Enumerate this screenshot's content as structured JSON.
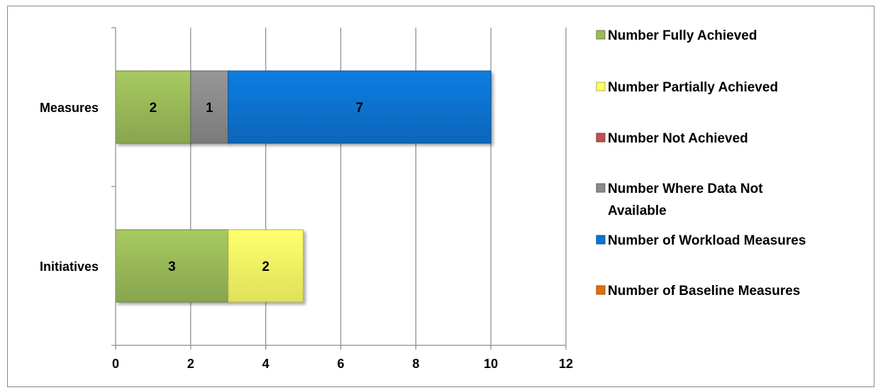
{
  "chart_data": {
    "type": "bar",
    "orientation": "horizontal",
    "stacked": true,
    "categories": [
      "Measures",
      "Initiatives"
    ],
    "series": [
      {
        "name": "Number Fully Achieved",
        "color": "#9BBB59",
        "values": [
          2,
          3
        ]
      },
      {
        "name": "Number Partially Achieved",
        "color": "#FFFF66",
        "values": [
          0,
          2
        ]
      },
      {
        "name": "Number Not Achieved",
        "color": "#C0504D",
        "values": [
          0,
          0
        ]
      },
      {
        "name": "Number Where Data Not Available",
        "color": "#8C8C8C",
        "values": [
          1,
          0
        ]
      },
      {
        "name": "Number of Workload Measures",
        "color": "#0B74D2",
        "values": [
          7,
          0
        ]
      },
      {
        "name": "Number of Baseline Measures",
        "color": "#E46C0A",
        "values": [
          0,
          0
        ]
      }
    ],
    "xlim": [
      0,
      12
    ],
    "x_ticks": [
      0,
      2,
      4,
      6,
      8,
      10,
      12
    ],
    "grid": true,
    "legend_position": "right"
  }
}
